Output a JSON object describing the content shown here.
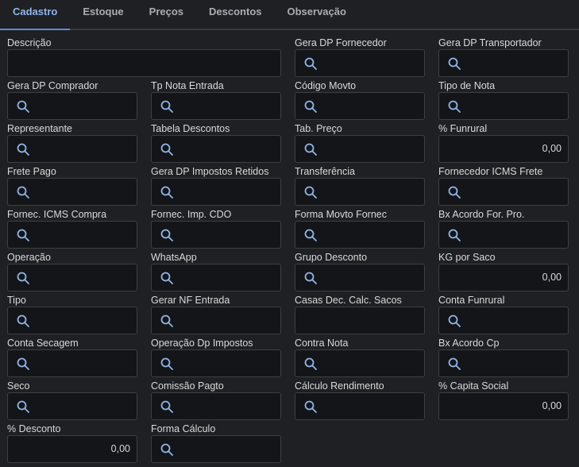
{
  "tabs": [
    "Cadastro",
    "Estoque",
    "Preços",
    "Descontos",
    "Observação"
  ],
  "active_tab": 0,
  "fields": [
    {
      "label": "Descrição",
      "kind": "text",
      "span": 2
    },
    {
      "label": "Gera DP Fornecedor",
      "kind": "lookup"
    },
    {
      "label": "Gera DP Transportador",
      "kind": "lookup"
    },
    {
      "label": "Gera DP Comprador",
      "kind": "lookup"
    },
    {
      "label": "Tp Nota Entrada",
      "kind": "lookup"
    },
    {
      "label": "Código Movto",
      "kind": "lookup"
    },
    {
      "label": "Tipo de Nota",
      "kind": "lookup"
    },
    {
      "label": "Representante",
      "kind": "lookup"
    },
    {
      "label": "Tabela Descontos",
      "kind": "lookup"
    },
    {
      "label": "Tab. Preço",
      "kind": "lookup"
    },
    {
      "label": "% Funrural",
      "kind": "number",
      "value": "0,00"
    },
    {
      "label": "Frete Pago",
      "kind": "lookup"
    },
    {
      "label": "Gera DP Impostos Retidos",
      "kind": "lookup"
    },
    {
      "label": "Transferência",
      "kind": "lookup"
    },
    {
      "label": "Fornecedor ICMS Frete",
      "kind": "lookup"
    },
    {
      "label": "Fornec. ICMS Compra",
      "kind": "lookup"
    },
    {
      "label": "Fornec. Imp. CDO",
      "kind": "lookup"
    },
    {
      "label": "Forma Movto Fornec",
      "kind": "lookup"
    },
    {
      "label": "Bx Acordo For. Pro.",
      "kind": "lookup"
    },
    {
      "label": "Operação",
      "kind": "lookup"
    },
    {
      "label": "WhatsApp",
      "kind": "lookup"
    },
    {
      "label": "Grupo Desconto",
      "kind": "lookup"
    },
    {
      "label": "KG por Saco",
      "kind": "number",
      "value": "0,00"
    },
    {
      "label": "Tipo",
      "kind": "lookup"
    },
    {
      "label": "Gerar NF Entrada",
      "kind": "lookup"
    },
    {
      "label": "Casas Dec. Calc. Sacos",
      "kind": "text"
    },
    {
      "label": "Conta Funrural",
      "kind": "lookup"
    },
    {
      "label": "Conta Secagem",
      "kind": "lookup"
    },
    {
      "label": "Operação Dp Impostos",
      "kind": "lookup"
    },
    {
      "label": "Contra Nota",
      "kind": "lookup"
    },
    {
      "label": "Bx Acordo Cp",
      "kind": "lookup"
    },
    {
      "label": "Seco",
      "kind": "lookup"
    },
    {
      "label": "Comissão Pagto",
      "kind": "lookup"
    },
    {
      "label": "Cálculo Rendimento",
      "kind": "lookup"
    },
    {
      "label": "% Capita Social",
      "kind": "number",
      "value": "0,00"
    },
    {
      "label": "% Desconto",
      "kind": "number",
      "value": "0,00"
    },
    {
      "label": "Forma Cálculo",
      "kind": "lookup"
    }
  ]
}
